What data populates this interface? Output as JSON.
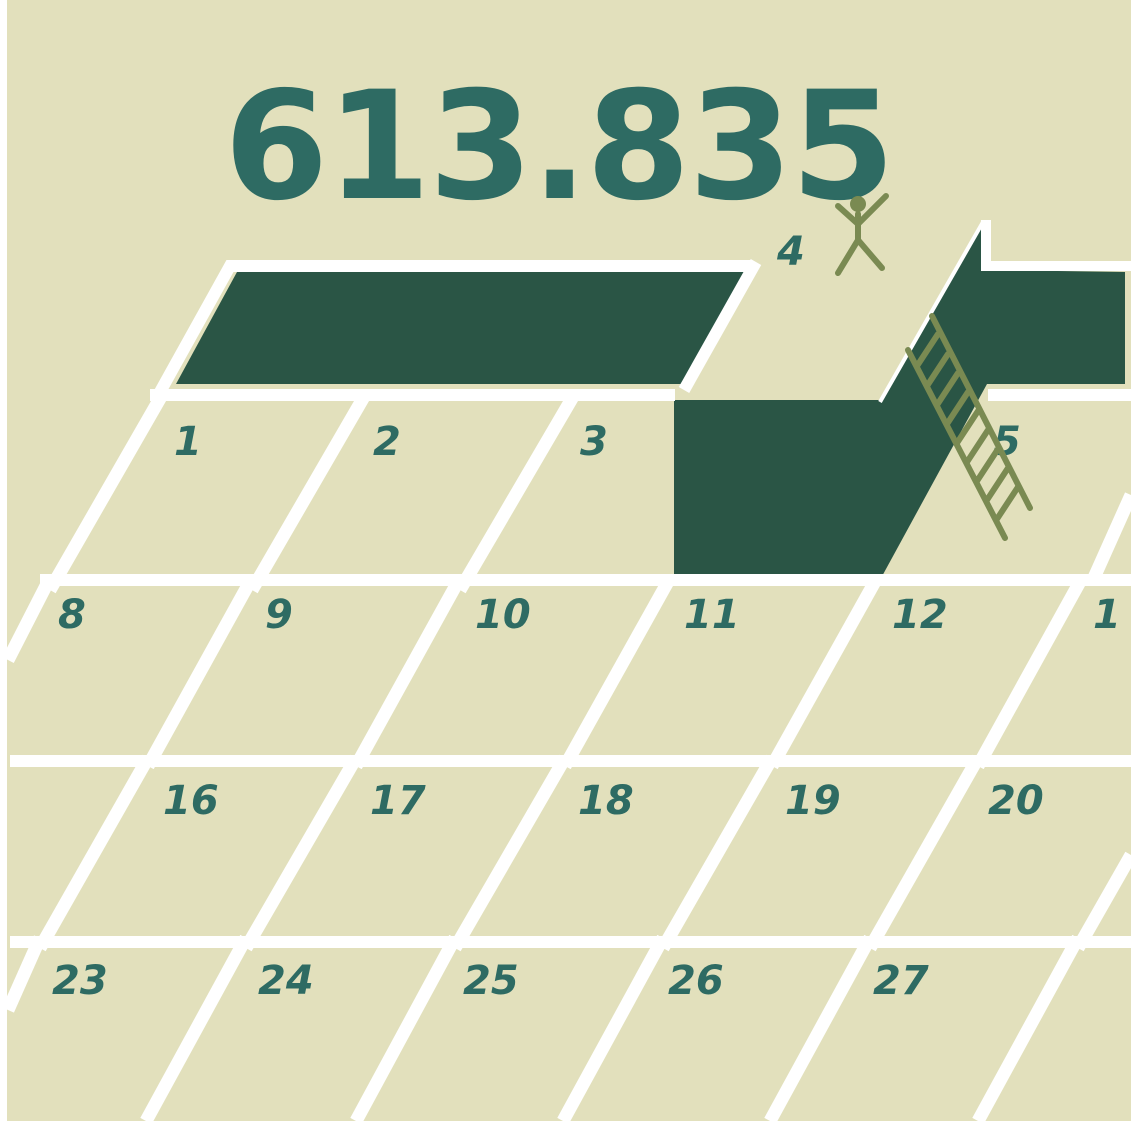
{
  "headline": {
    "value": "613.835"
  },
  "colors": {
    "background": "#e2e0bc",
    "grid_line": "#ffffff",
    "block": "#2a5545",
    "text": "#2e6b63",
    "figure": "#7a8a52"
  },
  "icons": {
    "person": "person-arms-raised-icon",
    "ladder": "ladder-icon"
  },
  "calendar": {
    "week1": [
      "1",
      "2",
      "3",
      "4",
      "5"
    ],
    "week2": [
      "8",
      "9",
      "10",
      "11",
      "12",
      "1"
    ],
    "week3": [
      "16",
      "17",
      "18",
      "19",
      "20"
    ],
    "week4": [
      "23",
      "24",
      "25",
      "26",
      "27"
    ]
  }
}
